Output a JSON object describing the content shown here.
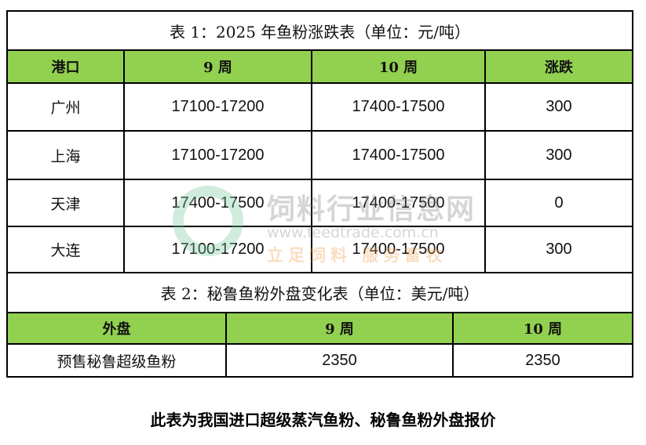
{
  "table1": {
    "title": "表 1：2025 年鱼粉涨跌表（单位：元/吨）",
    "headers": [
      "港口",
      "9 周",
      "10 周",
      "涨跌"
    ],
    "rows": [
      [
        "广州",
        "17100-17200",
        "17400-17500",
        "300"
      ],
      [
        "上海",
        "17100-17200",
        "17400-17500",
        "300"
      ],
      [
        "天津",
        "17400-17500",
        "17400-17500",
        "0"
      ],
      [
        "大连",
        "17100-17200",
        "17400-17500",
        "300"
      ]
    ]
  },
  "table2": {
    "title": "表 2：秘鲁鱼粉外盘变化表（单位：美元/吨）",
    "headers": [
      "外盘",
      "9 周",
      "10 周"
    ],
    "rows": [
      [
        "预售秘鲁超级鱼粉",
        "2350",
        "2350"
      ]
    ]
  },
  "watermark": {
    "name": "饲料行业信息网",
    "url": "www.feedtrade.com.cn",
    "slogan": "立足饲料 服务畜牧"
  },
  "footer": "此表为我国进口超级蒸汽鱼粉、秘鲁鱼粉外盘报价",
  "colors": {
    "header_bg": "#92d050"
  }
}
